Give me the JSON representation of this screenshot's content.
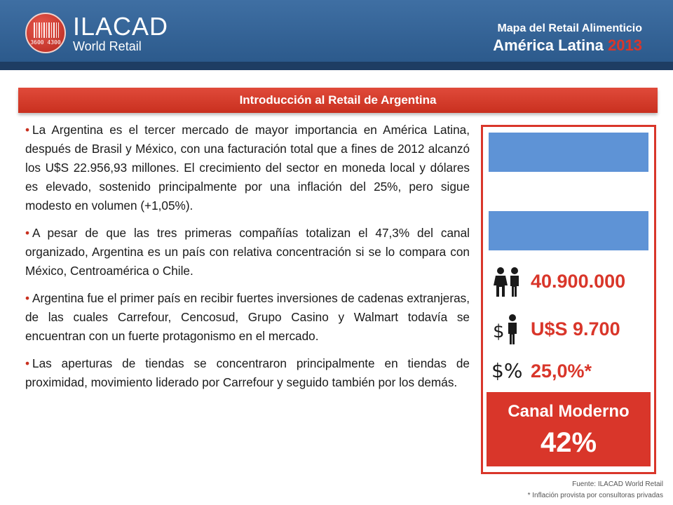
{
  "header": {
    "brand_name": "ILACAD",
    "brand_sub": "World Retail",
    "logo_digits": "3600  4300",
    "map_title": "Mapa del Retail Alimenticio",
    "region": "América Latina",
    "year": "2013"
  },
  "section": {
    "title": "Introducción al Retail de Argentina"
  },
  "bullets": [
    "La Argentina  es el tercer mercado de mayor importancia en América Latina, después de Brasil y México, con una facturación total que a fines de 2012 alcanzó los U$S 22.956,93 millones. El crecimiento del sector en moneda local y dólares es elevado, sostenido principalmente por una inflación del 25%, pero sigue modesto en volumen (+1,05%).",
    "A pesar de que las tres primeras compañías totalizan el 47,3% del canal organizado, Argentina es un país con relativa concentración si se lo compara con México, Centroamérica o Chile.",
    "Argentina fue el primer país en recibir fuertes inversiones de cadenas extranjeras, de las cuales Carrefour, Cencosud, Grupo Casino y Walmart todavía se encuentran con un fuerte protagonismo en el mercado.",
    "Las aperturas de tiendas se concentraron principalmente en tiendas de proximidad, movimiento liderado por Carrefour y seguido también por los demás."
  ],
  "stats": {
    "population": {
      "value": "40.900.000",
      "icon": "people-icon"
    },
    "gdp_per_capita": {
      "value": "U$S 9.700",
      "icon": "dollar-person-icon"
    },
    "inflation": {
      "value": "25,0%*",
      "icon": "dollar-percent-icon",
      "icon_text": "$%"
    }
  },
  "modern_channel": {
    "label": "Canal Moderno",
    "value": "42%"
  },
  "footer": {
    "source": "Fuente: ILACAD World Retail",
    "note": "* Inflación provista por consultoras privadas"
  },
  "colors": {
    "header_blue": "#2c5a8c",
    "accent_red": "#d9362a",
    "flag_blue": "#5e93d6"
  }
}
